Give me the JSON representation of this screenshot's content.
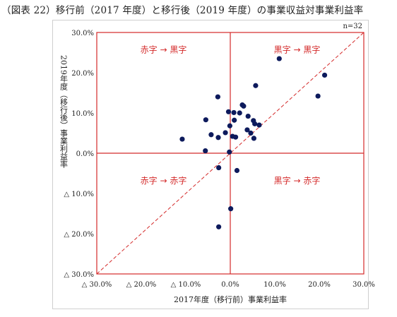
{
  "figure_title": "（図表 22）移行前（2017 年度）と移行後（2019 年度）の事業収益対事業利益率",
  "chart_data": {
    "type": "scatter",
    "note": "n=32",
    "xlabel": "2017年度（移行前）事業利益率",
    "ylabel_lines": [
      "2019年度",
      "（移行後）",
      "事業利益率"
    ],
    "xlim": [
      -30,
      30
    ],
    "ylim": [
      -30,
      30
    ],
    "xticks": [
      {
        "value": -30,
        "label": "△ 30.0%"
      },
      {
        "value": -20,
        "label": "△ 20.0%"
      },
      {
        "value": -10,
        "label": "△ 10.0%"
      },
      {
        "value": 0,
        "label": "0.0%"
      },
      {
        "value": 10,
        "label": "10.0%"
      },
      {
        "value": 20,
        "label": "20.0%"
      },
      {
        "value": 30,
        "label": "30.0%"
      }
    ],
    "yticks": [
      {
        "value": 30,
        "label": "30.0%"
      },
      {
        "value": 20,
        "label": "20.0%"
      },
      {
        "value": 10,
        "label": "10.0%"
      },
      {
        "value": 0,
        "label": "0.0%"
      },
      {
        "value": -10,
        "label": "△ 10.0%"
      },
      {
        "value": -20,
        "label": "△ 20.0%"
      },
      {
        "value": -30,
        "label": "△ 30.0%"
      }
    ],
    "quadrant_labels": {
      "top_left": [
        "赤字",
        "→",
        "黒字"
      ],
      "top_right": [
        "黒字",
        "→",
        "黒字"
      ],
      "bottom_left": [
        "赤字",
        "→",
        "赤字"
      ],
      "bottom_right": [
        "黒字",
        "→",
        "赤字"
      ]
    },
    "reference_line": "y = x (dashed)",
    "colors": {
      "point": "#0d1a5c",
      "quadrant": "#d42a2a",
      "frame": "#d42a2a"
    },
    "points": [
      {
        "x": 11.0,
        "y": 23.5
      },
      {
        "x": 21.2,
        "y": 19.4
      },
      {
        "x": 19.7,
        "y": 14.2
      },
      {
        "x": 5.7,
        "y": 16.8
      },
      {
        "x": -2.8,
        "y": 14.0
      },
      {
        "x": 2.7,
        "y": 12.0
      },
      {
        "x": 3.0,
        "y": 11.7
      },
      {
        "x": -0.4,
        "y": 10.3
      },
      {
        "x": 0.8,
        "y": 10.1
      },
      {
        "x": 2.1,
        "y": 10.0
      },
      {
        "x": 4.0,
        "y": 9.2
      },
      {
        "x": 0.9,
        "y": 8.2
      },
      {
        "x": 5.2,
        "y": 8.1
      },
      {
        "x": -5.5,
        "y": 8.3
      },
      {
        "x": 5.5,
        "y": 7.3
      },
      {
        "x": 6.5,
        "y": 7.0
      },
      {
        "x": -0.1,
        "y": 6.8
      },
      {
        "x": 3.8,
        "y": 5.8
      },
      {
        "x": 4.6,
        "y": 5.0
      },
      {
        "x": -1.1,
        "y": 5.1
      },
      {
        "x": -4.3,
        "y": 4.6
      },
      {
        "x": 0.5,
        "y": 4.2
      },
      {
        "x": 1.2,
        "y": 4.0
      },
      {
        "x": -2.7,
        "y": 3.9
      },
      {
        "x": 5.3,
        "y": 3.7
      },
      {
        "x": -10.8,
        "y": 3.5
      },
      {
        "x": -5.6,
        "y": 0.6
      },
      {
        "x": -0.2,
        "y": 0.3
      },
      {
        "x": -2.6,
        "y": -3.6
      },
      {
        "x": 1.5,
        "y": -4.3
      },
      {
        "x": 0.1,
        "y": -13.8
      },
      {
        "x": -2.6,
        "y": -18.3
      }
    ]
  }
}
